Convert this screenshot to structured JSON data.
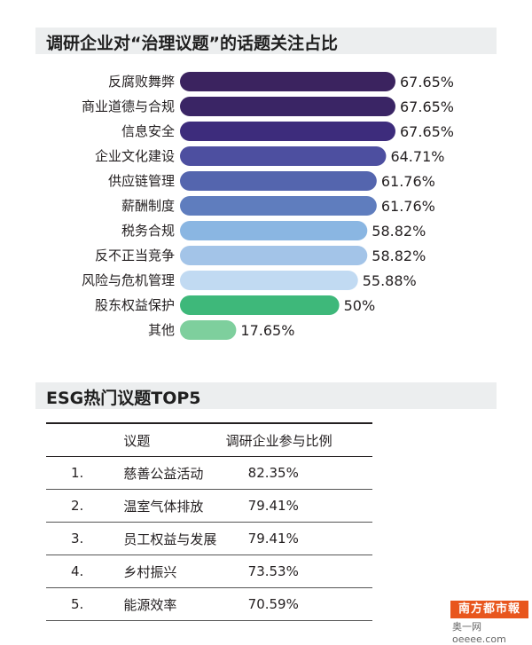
{
  "chart_title": "调研企业对“治理议题”的话题关注占比",
  "chart_data": {
    "type": "bar",
    "orientation": "horizontal",
    "title": "调研企业对“治理议题”的话题关注占比",
    "categories": [
      "反腐败舞弊",
      "商业道德与合规",
      "信息安全",
      "企业文化建设",
      "供应链管理",
      "薪酬制度",
      "税务合规",
      "反不正当竞争",
      "风险与危机管理",
      "股东权益保护",
      "其他"
    ],
    "values": [
      67.65,
      67.65,
      67.65,
      64.71,
      61.76,
      61.76,
      58.82,
      58.82,
      55.88,
      50,
      17.65
    ],
    "value_labels": [
      "67.65%",
      "67.65%",
      "67.65%",
      "64.71%",
      "61.76%",
      "61.76%",
      "58.82%",
      "58.82%",
      "55.88%",
      "50%",
      "17.65%"
    ],
    "colors": [
      "#3b235f",
      "#3a2565",
      "#3d2c7c",
      "#4d4fa0",
      "#5465ae",
      "#5f7dbe",
      "#8ab6e2",
      "#a3c4e8",
      "#c1daf2",
      "#3eb87a",
      "#7ecf9d"
    ],
    "xlim": [
      0,
      67.65
    ],
    "grid": false
  },
  "table": {
    "title": "ESG热门议题TOP5",
    "headers": [
      "",
      "议题",
      "调研企业参与比例"
    ],
    "rows": [
      {
        "rank": "1.",
        "topic": "慈善公益活动",
        "pct": "82.35%"
      },
      {
        "rank": "2.",
        "topic": "温室气体排放",
        "pct": "79.41%"
      },
      {
        "rank": "3.",
        "topic": "员工权益与发展",
        "pct": "79.41%"
      },
      {
        "rank": "4.",
        "topic": "乡村振兴",
        "pct": "73.53%"
      },
      {
        "rank": "5.",
        "topic": "能源效率",
        "pct": "70.59%"
      }
    ]
  },
  "logo": {
    "name": "南方都市報",
    "sub": "奥一网oeeee.com"
  }
}
